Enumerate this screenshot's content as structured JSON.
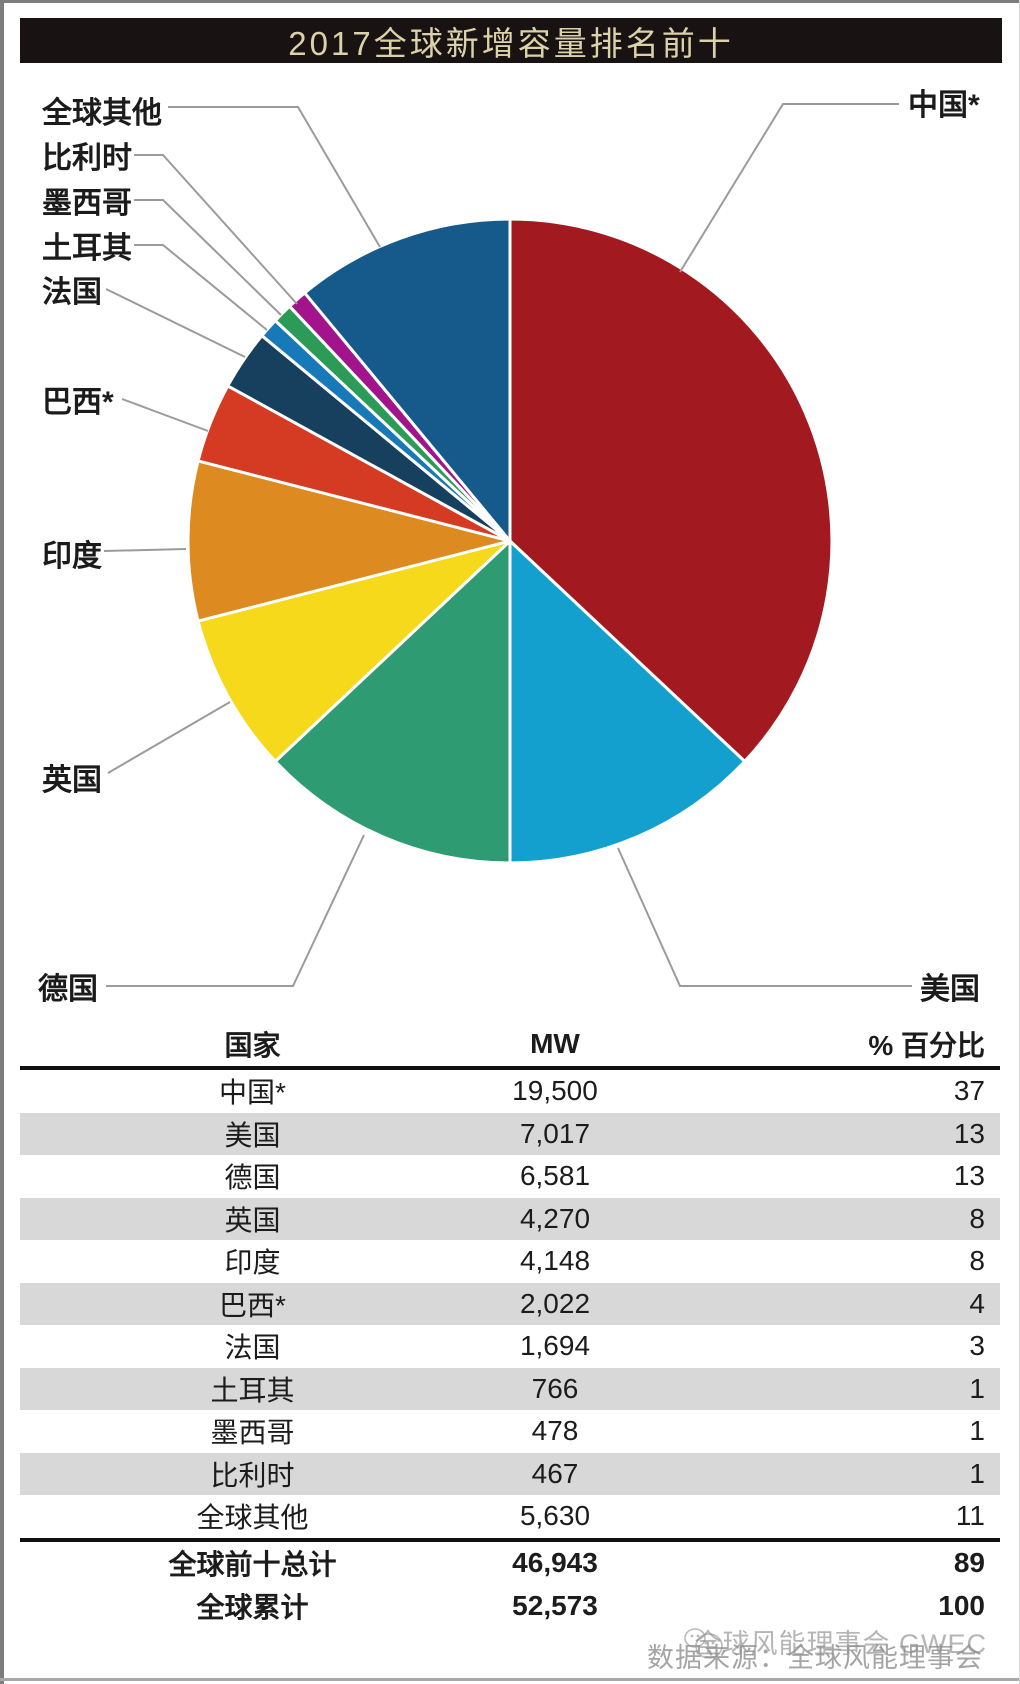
{
  "title": "2017全球新增容量排名前十",
  "chart_data": {
    "type": "pie",
    "title": "2017全球新增容量排名前十",
    "value_unit": "MW",
    "start_angle_deg": 0,
    "direction": "clockwise-from-12-oclock",
    "slices": [
      {
        "label": "中国*",
        "mw": 19500,
        "percent": 37,
        "color": "#A21A20"
      },
      {
        "label": "美国",
        "mw": 7017,
        "percent": 13,
        "color": "#14A0CF"
      },
      {
        "label": "德国",
        "mw": 6581,
        "percent": 13,
        "color": "#2E9B72"
      },
      {
        "label": "英国",
        "mw": 4270,
        "percent": 8,
        "color": "#F5D91A"
      },
      {
        "label": "印度",
        "mw": 4148,
        "percent": 8,
        "color": "#DD8A20"
      },
      {
        "label": "巴西*",
        "mw": 2022,
        "percent": 4,
        "color": "#D53A22"
      },
      {
        "label": "法国",
        "mw": 1694,
        "percent": 3,
        "color": "#17405F"
      },
      {
        "label": "土耳其",
        "mw": 766,
        "percent": 1,
        "color": "#1779B8"
      },
      {
        "label": "墨西哥",
        "mw": 478,
        "percent": 1,
        "color": "#2B9B57"
      },
      {
        "label": "比利时",
        "mw": 467,
        "percent": 1,
        "color": "#A1148C"
      },
      {
        "label": "全球其他",
        "mw": 5630,
        "percent": 11,
        "color": "#165A8C"
      }
    ]
  },
  "table": {
    "headers": [
      "国家",
      "MW",
      "% 百分比"
    ],
    "rows": [
      {
        "country": "中国*",
        "mw": "19,500",
        "percent": "37"
      },
      {
        "country": "美国",
        "mw": "7,017",
        "percent": "13"
      },
      {
        "country": "德国",
        "mw": "6,581",
        "percent": "13"
      },
      {
        "country": "英国",
        "mw": "4,270",
        "percent": "8"
      },
      {
        "country": "印度",
        "mw": "4,148",
        "percent": "8"
      },
      {
        "country": "巴西*",
        "mw": "2,022",
        "percent": "4"
      },
      {
        "country": "法国",
        "mw": "1,694",
        "percent": "3"
      },
      {
        "country": "土耳其",
        "mw": "766",
        "percent": "1"
      },
      {
        "country": "墨西哥",
        "mw": "478",
        "percent": "1"
      },
      {
        "country": "比利时",
        "mw": "467",
        "percent": "1"
      },
      {
        "country": "全球其他",
        "mw": "5,630",
        "percent": "11"
      }
    ],
    "totals": [
      {
        "country": "全球前十总计",
        "mw": "46,943",
        "percent": "89"
      },
      {
        "country": "全球累计",
        "mw": "52,573",
        "percent": "100"
      }
    ]
  },
  "watermark": {
    "line1": "全球风能理事会 GWEC",
    "line2": "数据来源：全球风能理事会"
  },
  "colors": {
    "title_bg": "#181312",
    "title_text": "#DCD2A9",
    "row_stripe": "#D8D8D8",
    "leader_line": "#9B9B9B",
    "table_rule": "#111111",
    "text": "#1C1C1C",
    "watermark": "#8F8F8F"
  }
}
